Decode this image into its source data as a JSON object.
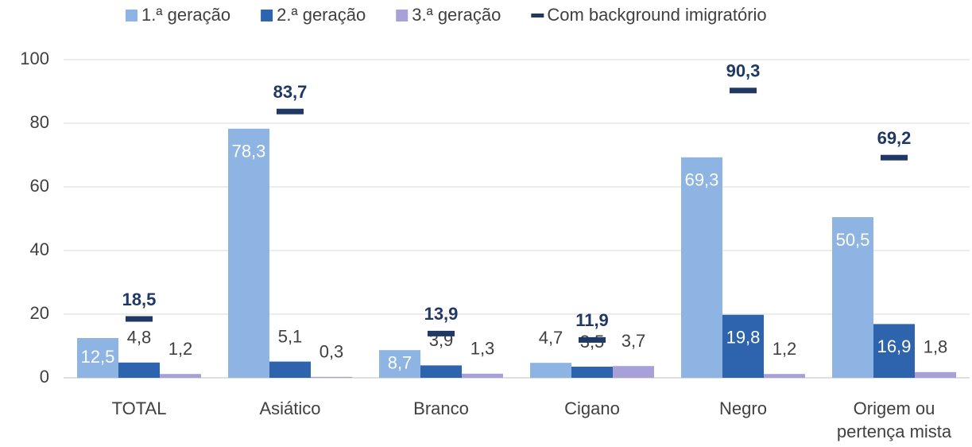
{
  "chart_data": {
    "type": "bar",
    "categories": [
      "TOTAL",
      "Asiático",
      "Branco",
      "Cigano",
      "Negro",
      "Origem ou\npertença mista"
    ],
    "series": [
      {
        "name": "1.ª geração",
        "color": "#8db4e2",
        "values": [
          12.5,
          78.3,
          8.7,
          4.7,
          69.3,
          50.5
        ],
        "value_labels": [
          "12,5",
          "78,3",
          "8,7",
          "4,7",
          "69,3",
          "50,5"
        ]
      },
      {
        "name": "2.ª geração",
        "color": "#2e63ad",
        "values": [
          4.8,
          5.1,
          3.9,
          3.5,
          19.8,
          16.9
        ],
        "value_labels": [
          "4,8",
          "5,1",
          "3,9",
          "3,5",
          "19,8",
          "16,9"
        ]
      },
      {
        "name": "3.ª geração",
        "color": "#a7a1d8",
        "values": [
          1.2,
          0.3,
          1.3,
          3.7,
          1.2,
          1.8
        ],
        "value_labels": [
          "1,2",
          "0,3",
          "1,3",
          "3,7",
          "1,2",
          "1,8"
        ]
      },
      {
        "name": "Com background imigratório",
        "type": "marker",
        "color": "#1f3864",
        "values": [
          18.5,
          83.7,
          13.9,
          11.9,
          90.3,
          69.2
        ],
        "value_labels": [
          "18,5",
          "83,7",
          "13,9",
          "11,9",
          "90,3",
          "69,2"
        ]
      }
    ],
    "ylim": [
      0,
      100
    ],
    "yticks": [
      0,
      20,
      40,
      60,
      80,
      100
    ],
    "grid": true,
    "legend": "top"
  }
}
